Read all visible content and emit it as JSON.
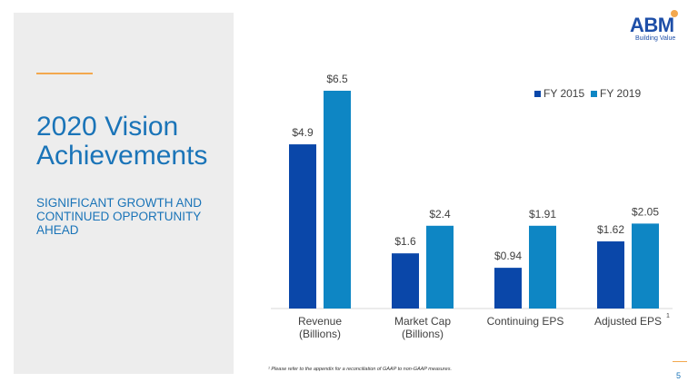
{
  "slide": {
    "title": "2020 Vision Achievements",
    "subtitle": "SIGNIFICANT GROWTH AND CONTINUED OPPORTUNITY AHEAD",
    "logo_text": "ABM",
    "logo_tagline": "Building Value",
    "footnote": "¹ Please refer to the appendix for a reconciliation of GAAP to non-GAAP measures.",
    "page_number": "5"
  },
  "colors": {
    "title": "#1a74b8",
    "accent": "#f3a84e",
    "fy2015": "#0a47a9",
    "fy2019": "#0e86c4"
  },
  "chart_data": {
    "type": "bar",
    "categories": [
      "Revenue\n(Billions)",
      "Market Cap\n(Billions)",
      "Continuing EPS",
      "Adjusted EPS"
    ],
    "category_superscripts": [
      "",
      "",
      "",
      "1"
    ],
    "series": [
      {
        "name": "FY 2015",
        "values": [
          4.9,
          1.6,
          0.94,
          1.62
        ],
        "labels": [
          "$4.9",
          "$1.6",
          "$0.94",
          "$1.62"
        ]
      },
      {
        "name": "FY 2019",
        "values": [
          6.5,
          2.4,
          1.91,
          2.05
        ],
        "labels": [
          "$6.5",
          "$2.4",
          "$1.91",
          "$2.05"
        ]
      }
    ],
    "bar_scaling": "per-category",
    "legend": "top-right",
    "grid": false
  }
}
